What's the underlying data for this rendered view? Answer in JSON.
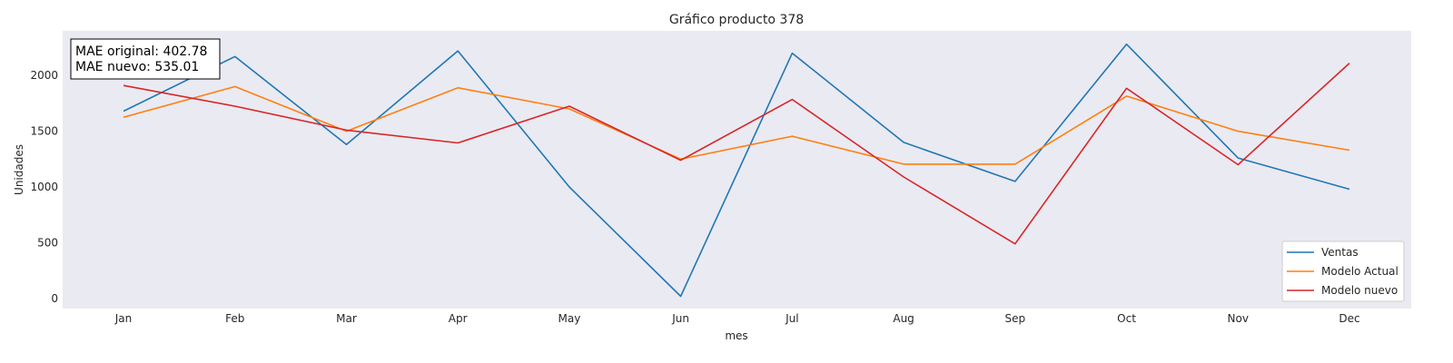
{
  "chart_data": {
    "type": "line",
    "title": "Gráfico producto 378",
    "xlabel": "mes",
    "ylabel": "Unidades",
    "categories": [
      "Jan",
      "Feb",
      "Mar",
      "Apr",
      "May",
      "Jun",
      "Jul",
      "Aug",
      "Sep",
      "Oct",
      "Nov",
      "Dec"
    ],
    "y_ticks": [
      0,
      500,
      1000,
      1500,
      2000
    ],
    "ylim": [
      -90,
      2400
    ],
    "grid": false,
    "legend_position": "bottom-right",
    "background_color": "#eaeaf2",
    "series": [
      {
        "name": "Ventas",
        "color": "#1f77b4",
        "values": [
          1680,
          2170,
          1380,
          2220,
          1000,
          20,
          2200,
          1400,
          1050,
          2280,
          1260,
          980
        ]
      },
      {
        "name": "Modelo Actual",
        "color": "#ff7f0e",
        "values": [
          1625,
          1900,
          1500,
          1890,
          1700,
          1250,
          1455,
          1205,
          1205,
          1815,
          1500,
          1330
        ]
      },
      {
        "name": "Modelo nuevo",
        "color": "#d62728",
        "values": [
          1910,
          1725,
          1510,
          1395,
          1725,
          1240,
          1785,
          1090,
          490,
          1885,
          1200,
          2110
        ]
      }
    ],
    "annotation": {
      "line1": "MAE original: 402.78",
      "line2": "MAE nuevo: 535.01"
    }
  }
}
